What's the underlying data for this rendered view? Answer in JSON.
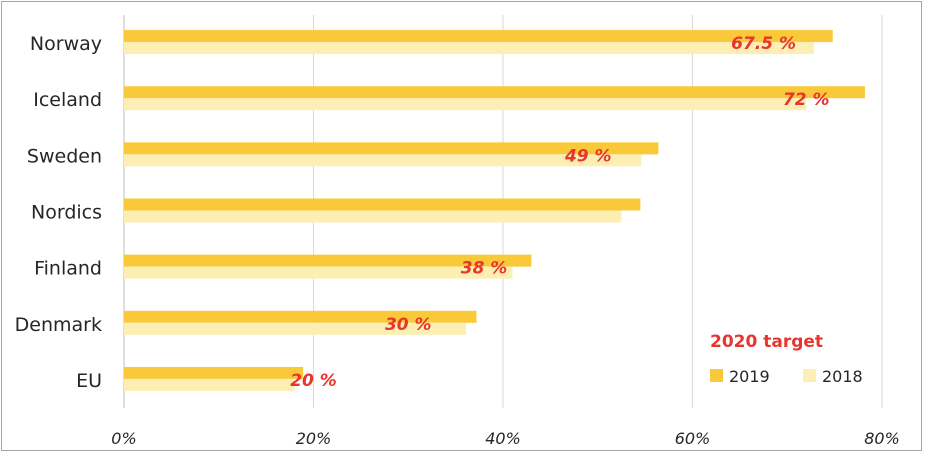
{
  "chart_data": {
    "type": "bar",
    "orientation": "horizontal",
    "categories": [
      "Norway",
      "Iceland",
      "Sweden",
      "Nordics",
      "Finland",
      "Denmark",
      "EU"
    ],
    "series": [
      {
        "name": "2019",
        "color": "#f9c93a",
        "values": [
          74.8,
          78.2,
          56.4,
          54.5,
          43.0,
          37.2,
          18.9
        ]
      },
      {
        "name": "2018",
        "color": "#fdeeb4",
        "values": [
          72.8,
          72.0,
          54.6,
          52.5,
          41.0,
          36.1,
          18.0
        ]
      }
    ],
    "targets": {
      "values": [
        67.5,
        72,
        49,
        null,
        38,
        30,
        20
      ],
      "labels": [
        "67.5 %",
        "72 %",
        "49 %",
        "",
        "38 %",
        "30 %",
        "20 %"
      ],
      "color": "#e8352e"
    },
    "x_ticks": [
      "0%",
      "20%",
      "40%",
      "60%",
      "80%"
    ],
    "xlim": [
      0,
      80
    ],
    "grid": true,
    "legend": {
      "title": "2020 target",
      "position": "bottom-right"
    }
  }
}
